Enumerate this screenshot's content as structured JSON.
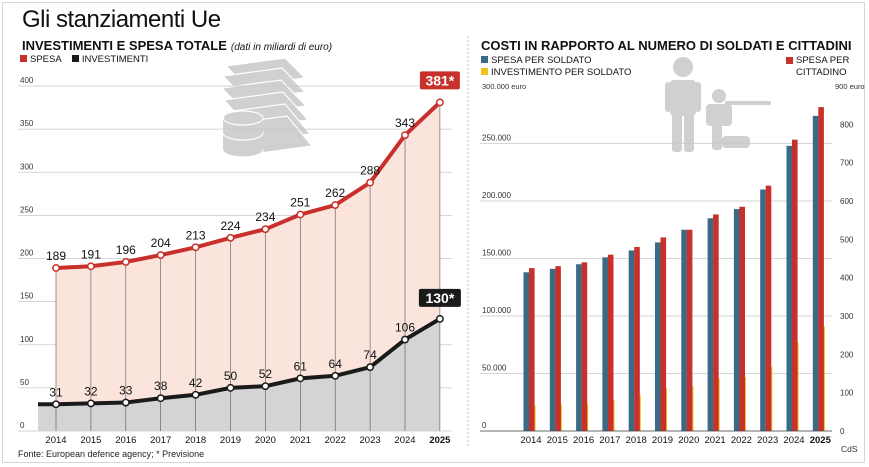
{
  "header": {
    "title": "Gli stanziamenti Ue",
    "source": "Fonte: European defence agency; * Previsione",
    "credit": "CdS"
  },
  "colors": {
    "spesa": "#c8302b",
    "investimenti": "#1a1a1a",
    "spesa_area": "#fbe4dc",
    "inv_area": "#d4d4d4",
    "spesa_soldato": "#3b6b84",
    "investimento_soldato": "#f2c21b",
    "grid": "#c9c9c9"
  },
  "icons": [
    "money-stack-icon",
    "soldiers-icon"
  ],
  "chart_data": [
    {
      "type": "line",
      "title": "INVESTIMENTI E SPESA TOTALE",
      "subtitle": "(dati in miliardi di euro)",
      "legend": [
        "SPESA",
        "INVESTIMENTI"
      ],
      "x": [
        "2014",
        "2015",
        "2016",
        "2017",
        "2018",
        "2019",
        "2020",
        "2021",
        "2022",
        "2023",
        "2024",
        "2025"
      ],
      "series": [
        {
          "name": "SPESA",
          "values": [
            189,
            191,
            196,
            204,
            213,
            224,
            234,
            251,
            262,
            288,
            343,
            381
          ]
        },
        {
          "name": "INVESTIMENTI",
          "values": [
            31,
            32,
            33,
            38,
            42,
            50,
            52,
            61,
            64,
            74,
            106,
            130
          ]
        }
      ],
      "labels": {
        "spesa": [
          "189",
          "191",
          "196",
          "204",
          "213",
          "224",
          "234",
          "251",
          "262",
          "288",
          "343",
          "381*"
        ],
        "investimenti": [
          "31",
          "32",
          "33",
          "38",
          "42",
          "50",
          "52",
          "61",
          "64",
          "74",
          "106",
          "130*"
        ]
      },
      "yticks": [
        "0",
        "50",
        "100",
        "150",
        "200",
        "250",
        "300",
        "350",
        "400"
      ],
      "ylim": [
        0,
        400
      ],
      "grid": true
    },
    {
      "type": "bar",
      "title": "COSTI IN RAPPORTO AL NUMERO DI SOLDATI E CITTADINI",
      "legend": [
        "SPESA PER SOLDATO",
        "INVESTIMENTO PER SOLDATO",
        "SPESA PER CITTADINO"
      ],
      "left_unit": "300.000 euro",
      "right_unit": "900 euro",
      "categories": [
        "2014",
        "2015",
        "2016",
        "2017",
        "2018",
        "2019",
        "2020",
        "2021",
        "2022",
        "2023",
        "2024",
        "2025"
      ],
      "series": [
        {
          "name": "SPESA PER SOLDATO",
          "axis": "left",
          "values": [
            138000,
            141000,
            145000,
            151000,
            157000,
            164000,
            175000,
            185000,
            193000,
            210000,
            248000,
            274000
          ]
        },
        {
          "name": "INVESTIMENTO PER SOLDATO",
          "axis": "left",
          "values": [
            22000,
            23000,
            24000,
            27000,
            31000,
            37000,
            39000,
            46000,
            47000,
            56000,
            77000,
            91000
          ]
        },
        {
          "name": "SPESA PER CITTADINO",
          "axis": "right",
          "values": [
            425,
            430,
            440,
            460,
            480,
            505,
            525,
            565,
            585,
            640,
            760,
            845
          ]
        }
      ],
      "yticks_left": [
        "0",
        "50.000",
        "100.000",
        "150.000",
        "200.000",
        "250.000"
      ],
      "yticks_right": [
        "0",
        "100",
        "200",
        "300",
        "400",
        "500",
        "600",
        "700",
        "800"
      ],
      "ylim_left": [
        0,
        300000
      ],
      "ylim_right": [
        0,
        900
      ]
    }
  ]
}
